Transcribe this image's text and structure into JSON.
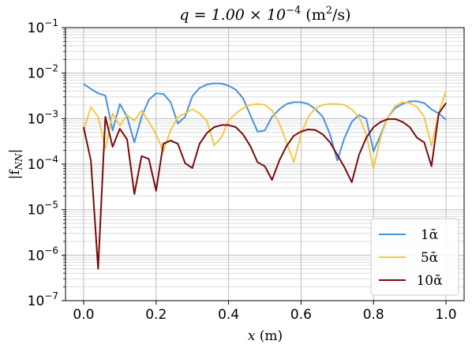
{
  "chart_data": {
    "type": "line",
    "title": {
      "prefix": "q = 1.00 × 10",
      "exponent": "−4",
      "units_open": " (m",
      "units_exp": "2",
      "units_close": "/s)"
    },
    "xlabel": {
      "var": "x",
      "units": " (m)"
    },
    "ylabel": {
      "open": "|f",
      "sub": "NN",
      "close": "|"
    },
    "xlim": [
      -0.05,
      1.05
    ],
    "ylim_exp": [
      -7,
      -1
    ],
    "y_log_scale": true,
    "grid": true,
    "legend_position": "lower-right",
    "x_ticks": [
      {
        "v": 0.0,
        "label": "0.0"
      },
      {
        "v": 0.2,
        "label": "0.2"
      },
      {
        "v": 0.4,
        "label": "0.4"
      },
      {
        "v": 0.6,
        "label": "0.6"
      },
      {
        "v": 0.8,
        "label": "0.8"
      },
      {
        "v": 1.0,
        "label": "1.0"
      }
    ],
    "y_ticks": [
      {
        "exp": -7,
        "base": "10",
        "sup": "−7"
      },
      {
        "exp": -6,
        "base": "10",
        "sup": "−6"
      },
      {
        "exp": -5,
        "base": "10",
        "sup": "−5"
      },
      {
        "exp": -4,
        "base": "10",
        "sup": "−4"
      },
      {
        "exp": -3,
        "base": "10",
        "sup": "−3"
      },
      {
        "exp": -2,
        "base": "10",
        "sup": "−2"
      },
      {
        "exp": -1,
        "base": "10",
        "sup": "−1"
      }
    ],
    "series": [
      {
        "name": "1ᾱ",
        "color": "#4a90e2",
        "points": [
          [
            0.0,
            0.0058
          ],
          [
            0.02,
            0.0045
          ],
          [
            0.04,
            0.0036
          ],
          [
            0.06,
            0.0032
          ],
          [
            0.08,
            0.00055
          ],
          [
            0.1,
            0.0021
          ],
          [
            0.12,
            0.0011
          ],
          [
            0.14,
            0.0003
          ],
          [
            0.16,
            0.0011
          ],
          [
            0.18,
            0.0026
          ],
          [
            0.2,
            0.0036
          ],
          [
            0.22,
            0.0035
          ],
          [
            0.24,
            0.0023
          ],
          [
            0.26,
            0.00078
          ],
          [
            0.28,
            0.0011
          ],
          [
            0.3,
            0.0031
          ],
          [
            0.32,
            0.0047
          ],
          [
            0.34,
            0.0056
          ],
          [
            0.36,
            0.006
          ],
          [
            0.38,
            0.0059
          ],
          [
            0.4,
            0.0053
          ],
          [
            0.42,
            0.0043
          ],
          [
            0.44,
            0.0028
          ],
          [
            0.46,
            0.0012
          ],
          [
            0.48,
            0.00052
          ],
          [
            0.5,
            0.00055
          ],
          [
            0.52,
            0.0011
          ],
          [
            0.54,
            0.0016
          ],
          [
            0.56,
            0.0021
          ],
          [
            0.58,
            0.0023
          ],
          [
            0.6,
            0.0023
          ],
          [
            0.62,
            0.0021
          ],
          [
            0.64,
            0.0016
          ],
          [
            0.66,
            0.0011
          ],
          [
            0.68,
            0.00045
          ],
          [
            0.7,
            0.00012
          ],
          [
            0.72,
            0.00038
          ],
          [
            0.74,
            0.00085
          ],
          [
            0.76,
            0.0012
          ],
          [
            0.78,
            0.001
          ],
          [
            0.8,
            0.00019
          ],
          [
            0.82,
            0.00045
          ],
          [
            0.84,
            0.0011
          ],
          [
            0.86,
            0.0017
          ],
          [
            0.88,
            0.0021
          ],
          [
            0.9,
            0.0024
          ],
          [
            0.92,
            0.0024
          ],
          [
            0.94,
            0.0022
          ],
          [
            0.96,
            0.0016
          ],
          [
            0.98,
            0.0013
          ],
          [
            1.0,
            0.00095
          ]
        ]
      },
      {
        "name": "5ᾱ",
        "color": "#f2c84b",
        "points": [
          [
            0.0,
            0.00055
          ],
          [
            0.02,
            0.0018
          ],
          [
            0.04,
            0.0011
          ],
          [
            0.06,
            0.00022
          ],
          [
            0.08,
            0.0013
          ],
          [
            0.1,
            0.0007
          ],
          [
            0.12,
            0.0012
          ],
          [
            0.14,
            0.0009
          ],
          [
            0.16,
            0.0015
          ],
          [
            0.18,
            0.00085
          ],
          [
            0.2,
            0.00045
          ],
          [
            0.22,
            0.00019
          ],
          [
            0.24,
            0.00055
          ],
          [
            0.26,
            0.0011
          ],
          [
            0.28,
            0.0013
          ],
          [
            0.3,
            0.0016
          ],
          [
            0.32,
            0.0013
          ],
          [
            0.34,
            0.0009
          ],
          [
            0.36,
            0.00026
          ],
          [
            0.38,
            0.00038
          ],
          [
            0.4,
            0.0009
          ],
          [
            0.42,
            0.0013
          ],
          [
            0.44,
            0.0017
          ],
          [
            0.46,
            0.002
          ],
          [
            0.48,
            0.0021
          ],
          [
            0.5,
            0.002
          ],
          [
            0.52,
            0.0015
          ],
          [
            0.54,
            0.0008
          ],
          [
            0.56,
            0.0003
          ],
          [
            0.58,
            0.00011
          ],
          [
            0.6,
            0.00045
          ],
          [
            0.62,
            0.0011
          ],
          [
            0.64,
            0.0017
          ],
          [
            0.66,
            0.002
          ],
          [
            0.68,
            0.0021
          ],
          [
            0.7,
            0.0021
          ],
          [
            0.72,
            0.002
          ],
          [
            0.74,
            0.0016
          ],
          [
            0.76,
            0.0011
          ],
          [
            0.78,
            0.00045
          ],
          [
            0.8,
            8e-05
          ],
          [
            0.82,
            0.0004
          ],
          [
            0.84,
            0.0011
          ],
          [
            0.86,
            0.0019
          ],
          [
            0.88,
            0.0023
          ],
          [
            0.9,
            0.0022
          ],
          [
            0.92,
            0.0018
          ],
          [
            0.94,
            0.0011
          ],
          [
            0.96,
            0.00025
          ],
          [
            0.98,
            0.0013
          ],
          [
            1.0,
            0.0041
          ]
        ]
      },
      {
        "name": "10ᾱ",
        "color": "#7a0a0a",
        "points": [
          [
            0.0,
            0.00065
          ],
          [
            0.02,
            0.00012
          ],
          [
            0.04,
            5e-07
          ],
          [
            0.06,
            0.0011
          ],
          [
            0.08,
            0.00024
          ],
          [
            0.1,
            0.0006
          ],
          [
            0.12,
            0.00035
          ],
          [
            0.14,
            2.2e-05
          ],
          [
            0.16,
            0.00015
          ],
          [
            0.18,
            0.00013
          ],
          [
            0.2,
            2.6e-05
          ],
          [
            0.22,
            0.00028
          ],
          [
            0.24,
            0.00033
          ],
          [
            0.26,
            0.00028
          ],
          [
            0.28,
            0.000105
          ],
          [
            0.3,
            8.2e-05
          ],
          [
            0.32,
            0.00028
          ],
          [
            0.34,
            0.00048
          ],
          [
            0.36,
            0.00065
          ],
          [
            0.38,
            0.00072
          ],
          [
            0.4,
            0.00072
          ],
          [
            0.42,
            0.00065
          ],
          [
            0.44,
            0.00045
          ],
          [
            0.46,
            0.00025
          ],
          [
            0.48,
            0.00011
          ],
          [
            0.5,
            9e-05
          ],
          [
            0.52,
            4.5e-05
          ],
          [
            0.54,
            0.00012
          ],
          [
            0.56,
            0.00025
          ],
          [
            0.58,
            0.00042
          ],
          [
            0.6,
            0.00052
          ],
          [
            0.62,
            0.00058
          ],
          [
            0.64,
            0.00056
          ],
          [
            0.66,
            0.00045
          ],
          [
            0.68,
            0.0003
          ],
          [
            0.7,
            0.00016
          ],
          [
            0.72,
            8.5e-05
          ],
          [
            0.74,
            4e-05
          ],
          [
            0.76,
            0.00016
          ],
          [
            0.78,
            0.00038
          ],
          [
            0.8,
            0.00065
          ],
          [
            0.82,
            0.00085
          ],
          [
            0.84,
            0.00098
          ],
          [
            0.86,
            0.00098
          ],
          [
            0.88,
            0.00085
          ],
          [
            0.9,
            0.00065
          ],
          [
            0.92,
            0.00038
          ],
          [
            0.94,
            0.0003
          ],
          [
            0.96,
            9e-05
          ],
          [
            0.98,
            0.0013
          ],
          [
            1.0,
            0.0022
          ]
        ]
      }
    ]
  }
}
